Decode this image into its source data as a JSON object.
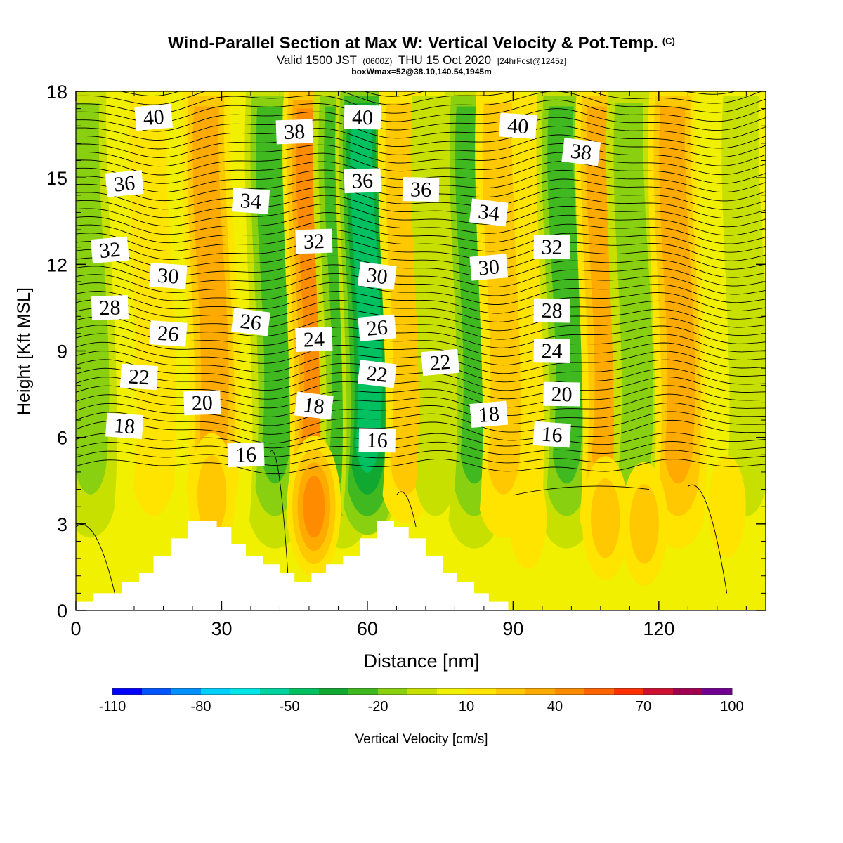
{
  "title": {
    "main": "Wind-Parallel Section at Max W: Vertical Velocity & Pot.Temp.",
    "main_suffix": "(C)",
    "valid_prefix": "Valid 1500 JST",
    "valid_utc": "(0600Z)",
    "valid_date": "THU 15 Oct 2020",
    "forecast": "[24hrFcst@1245z]",
    "box_info": "boxWmax=52@38.10,140.54,1945m"
  },
  "chart_data": {
    "type": "heatmap",
    "xlabel": "Distance [nm]",
    "ylabel": "Height [Kft MSL]",
    "xlim": [
      0,
      142
    ],
    "ylim": [
      0,
      18
    ],
    "x_ticks": [
      0,
      30,
      60,
      90,
      120
    ],
    "y_ticks": [
      0,
      3,
      6,
      9,
      12,
      15,
      18
    ],
    "colorbar": {
      "label": "Vertical Velocity [cm/s]",
      "tick_labels": [
        "-110",
        "-80",
        "-50",
        "-20",
        "10",
        "40",
        "70",
        "100"
      ],
      "tick_values": [
        -110,
        -80,
        -50,
        -20,
        10,
        40,
        70,
        100
      ],
      "range": [
        -110,
        100
      ],
      "bin_width": 10,
      "colors": [
        "#0000ff",
        "#0055ff",
        "#0090ff",
        "#00d0ff",
        "#00e6e6",
        "#00d2a0",
        "#00c060",
        "#10a830",
        "#40b820",
        "#88d010",
        "#c8e000",
        "#f0f000",
        "#ffe400",
        "#ffc800",
        "#ffaa00",
        "#ff8c00",
        "#ff6400",
        "#ff3000",
        "#d01030",
        "#a00050",
        "#700090"
      ]
    },
    "velocity_columns": [
      {
        "x": 3,
        "w": -18
      },
      {
        "x": 9,
        "w": 4
      },
      {
        "x": 16,
        "w": 18
      },
      {
        "x": 28,
        "w": 35
      },
      {
        "x": 41,
        "w": -28
      },
      {
        "x": 49,
        "w": 45
      },
      {
        "x": 55,
        "w": -30
      },
      {
        "x": 60,
        "w": -52
      },
      {
        "x": 68,
        "w": 28
      },
      {
        "x": 74,
        "w": -14
      },
      {
        "x": 82,
        "w": -25
      },
      {
        "x": 88,
        "w": 25
      },
      {
        "x": 95,
        "w": 18
      },
      {
        "x": 101,
        "w": -30
      },
      {
        "x": 109,
        "w": 42
      },
      {
        "x": 115,
        "w": -20
      },
      {
        "x": 124,
        "w": 40
      },
      {
        "x": 131,
        "w": 8
      },
      {
        "x": 138,
        "w": -10
      }
    ],
    "isotherm_levels": [
      16,
      18,
      20,
      22,
      24,
      26,
      28,
      30,
      32,
      34,
      36,
      38,
      40
    ],
    "isotherm_labels": [
      {
        "text": "40",
        "x": 16,
        "y": 17.1
      },
      {
        "text": "38",
        "x": 45,
        "y": 16.6
      },
      {
        "text": "40",
        "x": 59,
        "y": 17.1
      },
      {
        "text": "40",
        "x": 91,
        "y": 16.8
      },
      {
        "text": "38",
        "x": 104,
        "y": 15.9
      },
      {
        "text": "36",
        "x": 10,
        "y": 14.8
      },
      {
        "text": "36",
        "x": 59,
        "y": 14.9
      },
      {
        "text": "36",
        "x": 71,
        "y": 14.6
      },
      {
        "text": "34",
        "x": 36,
        "y": 14.2
      },
      {
        "text": "34",
        "x": 85,
        "y": 13.8
      },
      {
        "text": "32",
        "x": 7,
        "y": 12.5
      },
      {
        "text": "32",
        "x": 49,
        "y": 12.8
      },
      {
        "text": "32",
        "x": 98,
        "y": 12.6
      },
      {
        "text": "30",
        "x": 19,
        "y": 11.6
      },
      {
        "text": "30",
        "x": 62,
        "y": 11.6
      },
      {
        "text": "30",
        "x": 85,
        "y": 11.9
      },
      {
        "text": "28",
        "x": 7,
        "y": 10.5
      },
      {
        "text": "28",
        "x": 98,
        "y": 10.4
      },
      {
        "text": "26",
        "x": 19,
        "y": 9.6
      },
      {
        "text": "26",
        "x": 36,
        "y": 10.0
      },
      {
        "text": "26",
        "x": 62,
        "y": 9.8
      },
      {
        "text": "24",
        "x": 49,
        "y": 9.4
      },
      {
        "text": "24",
        "x": 98,
        "y": 9.0
      },
      {
        "text": "22",
        "x": 13,
        "y": 8.1
      },
      {
        "text": "22",
        "x": 62,
        "y": 8.2
      },
      {
        "text": "22",
        "x": 75,
        "y": 8.6
      },
      {
        "text": "20",
        "x": 26,
        "y": 7.2
      },
      {
        "text": "20",
        "x": 100,
        "y": 7.5
      },
      {
        "text": "18",
        "x": 10,
        "y": 6.4
      },
      {
        "text": "18",
        "x": 49,
        "y": 7.1
      },
      {
        "text": "18",
        "x": 85,
        "y": 6.8
      },
      {
        "text": "16",
        "x": 35,
        "y": 5.4
      },
      {
        "text": "16",
        "x": 62,
        "y": 5.9
      },
      {
        "text": "16",
        "x": 98,
        "y": 6.1
      }
    ],
    "terrain": [
      {
        "x": 0,
        "h": 0.3
      },
      {
        "x": 3.5,
        "h": 0.6
      },
      {
        "x": 9.5,
        "h": 1.0
      },
      {
        "x": 13,
        "h": 1.3
      },
      {
        "x": 16,
        "h": 1.9
      },
      {
        "x": 19.5,
        "h": 2.5
      },
      {
        "x": 23,
        "h": 3.1
      },
      {
        "x": 29,
        "h": 2.9
      },
      {
        "x": 32,
        "h": 2.3
      },
      {
        "x": 35,
        "h": 1.9
      },
      {
        "x": 38.5,
        "h": 1.6
      },
      {
        "x": 42,
        "h": 1.3
      },
      {
        "x": 45,
        "h": 1.0
      },
      {
        "x": 48.5,
        "h": 1.3
      },
      {
        "x": 51.5,
        "h": 1.6
      },
      {
        "x": 55,
        "h": 1.9
      },
      {
        "x": 58.5,
        "h": 2.5
      },
      {
        "x": 62,
        "h": 3.1
      },
      {
        "x": 65.5,
        "h": 2.9
      },
      {
        "x": 68.5,
        "h": 2.5
      },
      {
        "x": 72,
        "h": 1.9
      },
      {
        "x": 75.5,
        "h": 1.3
      },
      {
        "x": 78.5,
        "h": 1.0
      },
      {
        "x": 82,
        "h": 0.6
      },
      {
        "x": 85,
        "h": 0.3
      },
      {
        "x": 89,
        "h": 0
      }
    ]
  }
}
